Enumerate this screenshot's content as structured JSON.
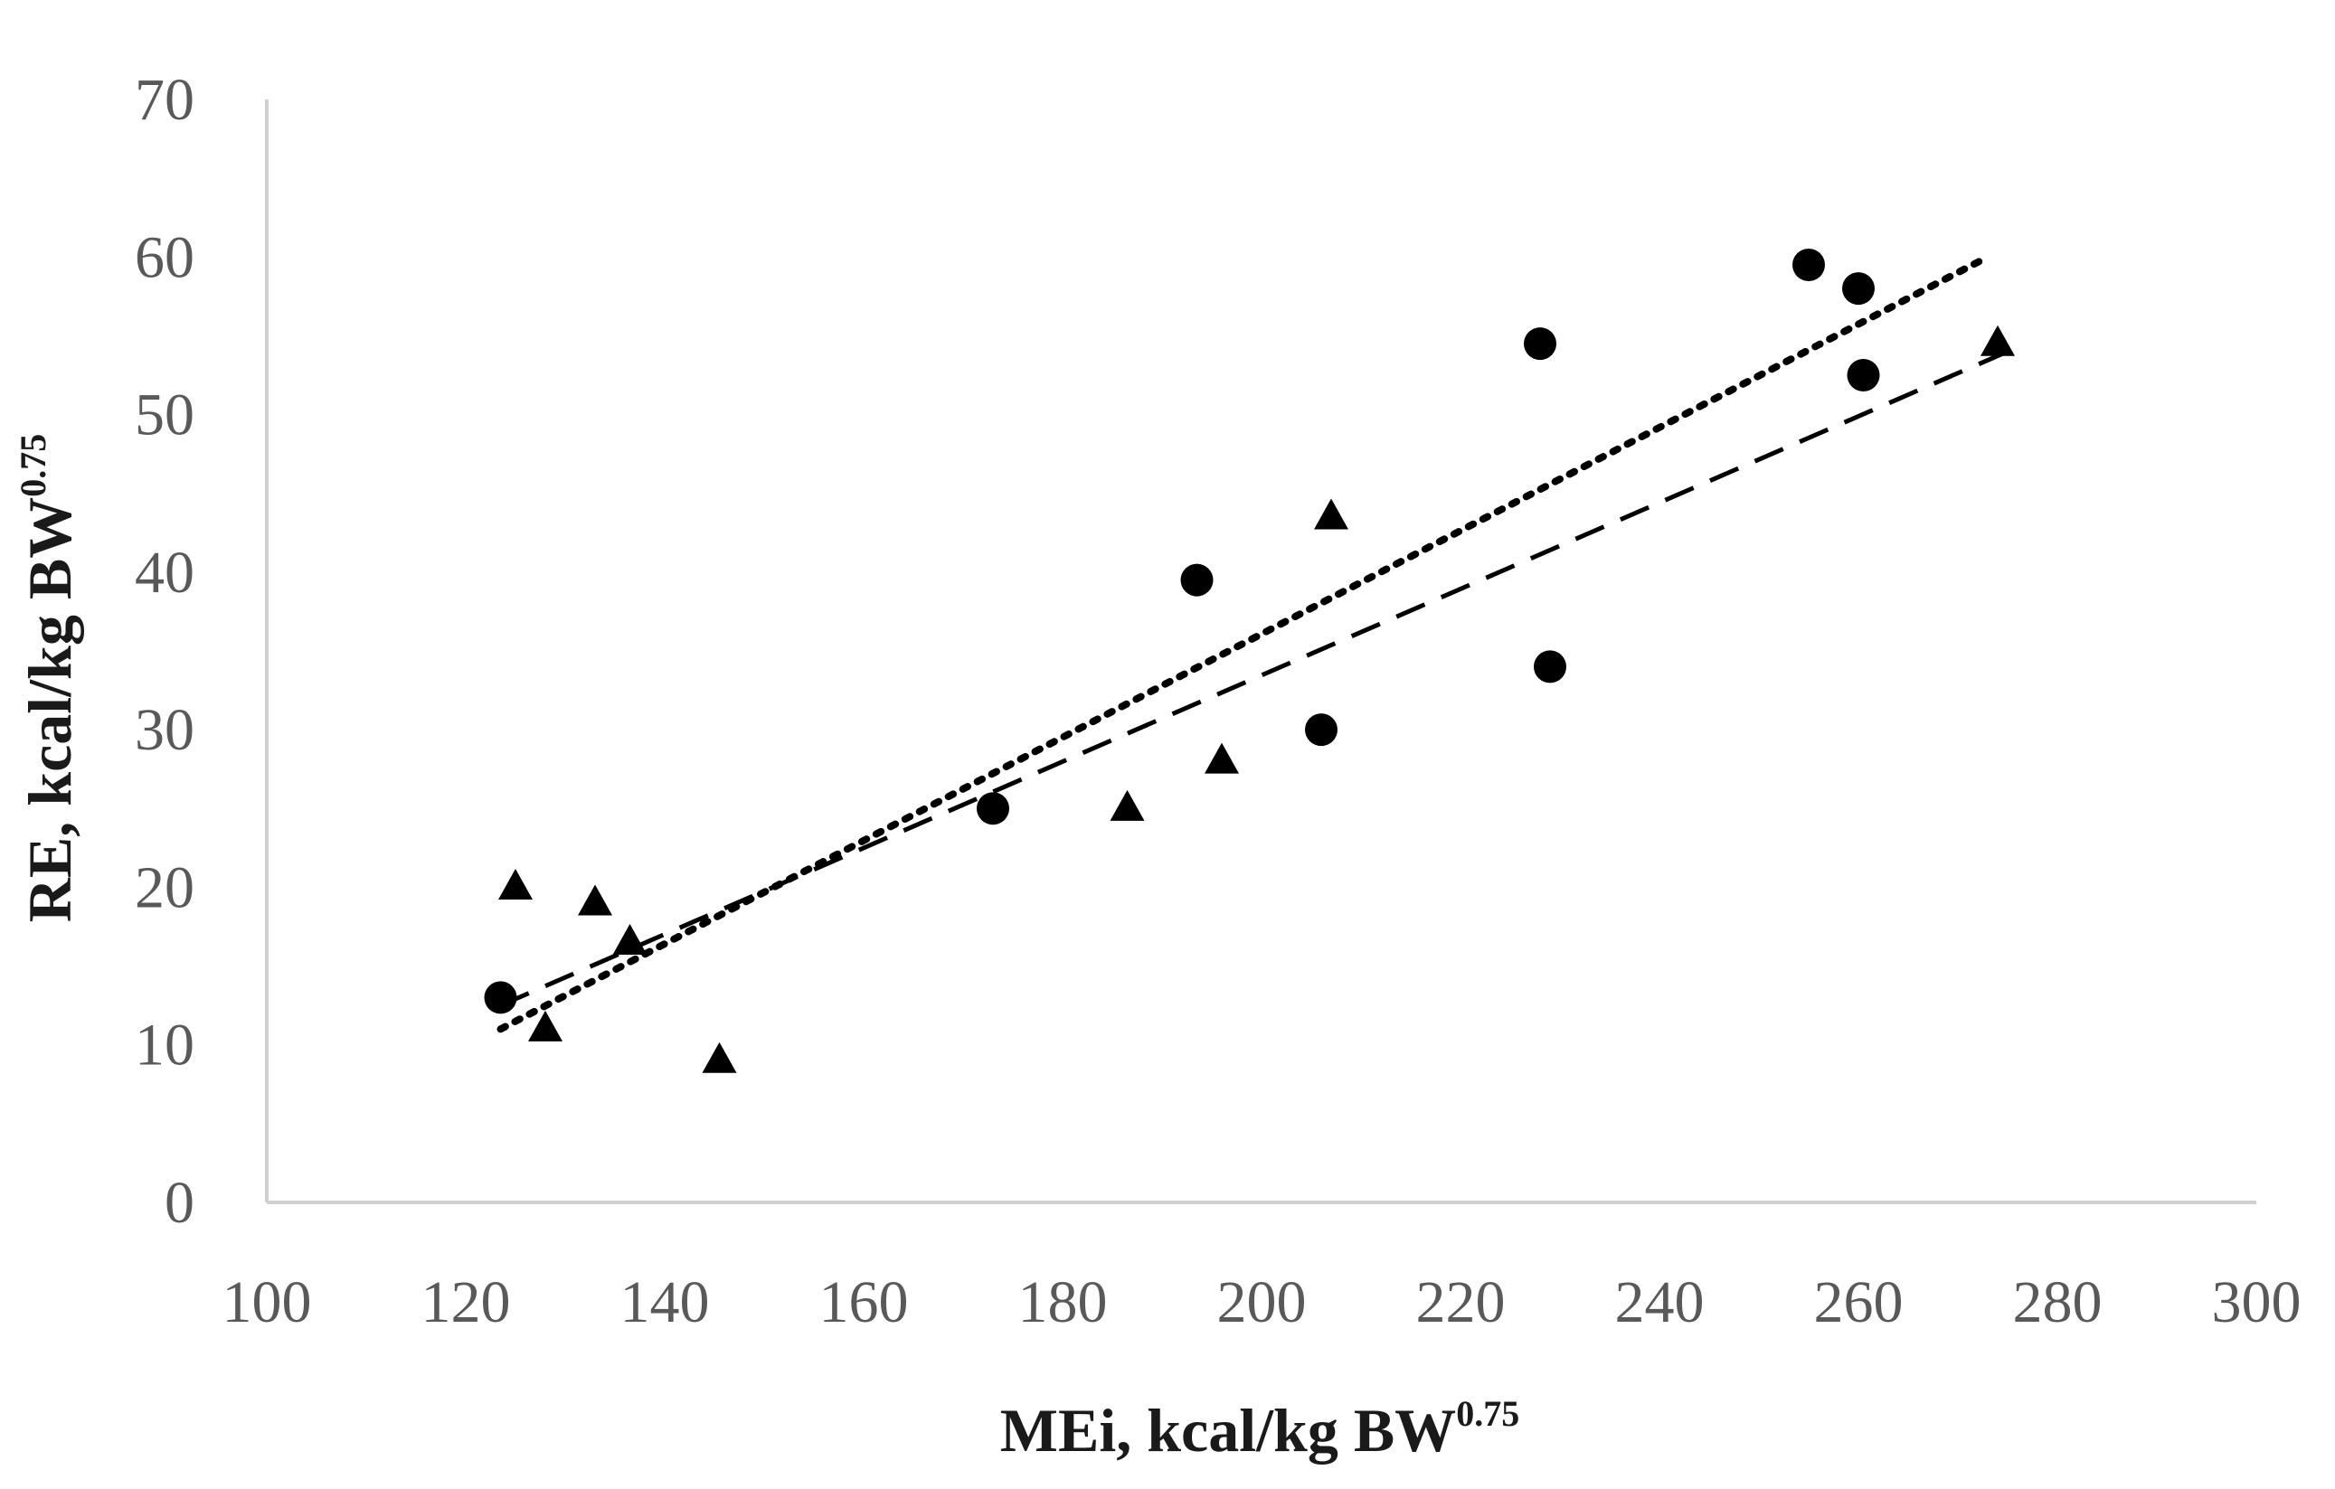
{
  "chart_data": {
    "type": "scatter",
    "title": "",
    "xlabel": "MEi, kcal/kg BW",
    "xlabel_superscript": "0.75",
    "ylabel": "RE, kcal/kg BW",
    "ylabel_superscript": "0.75",
    "xlim": [
      100,
      300
    ],
    "ylim": [
      0,
      70
    ],
    "x_ticks": [
      "100",
      "120",
      "140",
      "160",
      "180",
      "200",
      "220",
      "240",
      "260",
      "280",
      "300"
    ],
    "y_ticks": [
      "0",
      "10",
      "20",
      "30",
      "40",
      "50",
      "60",
      "70"
    ],
    "grid": false,
    "legend": "none",
    "series": [
      {
        "marker": "circle",
        "trendline": "dotted",
        "trendline_x": [
          123.5,
          273
        ],
        "trendline_y": [
          11,
          60
        ],
        "points": [
          {
            "x": 123.5,
            "y": 13
          },
          {
            "x": 173,
            "y": 25
          },
          {
            "x": 193.5,
            "y": 39.5
          },
          {
            "x": 206,
            "y": 30
          },
          {
            "x": 228,
            "y": 54.5
          },
          {
            "x": 229,
            "y": 34
          },
          {
            "x": 255,
            "y": 59.5
          },
          {
            "x": 260,
            "y": 58
          },
          {
            "x": 260.5,
            "y": 52.5
          }
        ]
      },
      {
        "marker": "triangle",
        "trendline": "dashed",
        "trendline_x": [
          123.5,
          275
        ],
        "trendline_y": [
          12.5,
          54
        ],
        "points": [
          {
            "x": 125,
            "y": 20
          },
          {
            "x": 128,
            "y": 11
          },
          {
            "x": 133,
            "y": 19
          },
          {
            "x": 136.5,
            "y": 16.5
          },
          {
            "x": 145.5,
            "y": 9
          },
          {
            "x": 186.5,
            "y": 25
          },
          {
            "x": 196,
            "y": 28
          },
          {
            "x": 207,
            "y": 43.5
          },
          {
            "x": 274,
            "y": 54.5
          }
        ]
      }
    ]
  }
}
